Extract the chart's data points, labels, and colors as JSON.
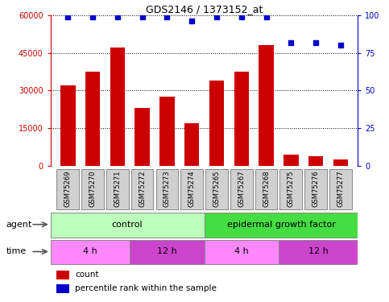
{
  "title": "GDS2146 / 1373152_at",
  "samples": [
    "GSM75269",
    "GSM75270",
    "GSM75271",
    "GSM75272",
    "GSM75273",
    "GSM75274",
    "GSM75265",
    "GSM75267",
    "GSM75268",
    "GSM75275",
    "GSM75276",
    "GSM75277"
  ],
  "counts": [
    32000,
    37500,
    47000,
    23000,
    27500,
    17000,
    34000,
    37500,
    48000,
    4500,
    4000,
    2500
  ],
  "percentile": [
    99,
    99,
    99,
    99,
    99,
    96,
    99,
    99,
    99,
    82,
    82,
    80
  ],
  "bar_color": "#cc0000",
  "dot_color": "#0000cc",
  "ylim_left": [
    0,
    60000
  ],
  "ylim_right": [
    0,
    100
  ],
  "yticks_left": [
    0,
    15000,
    30000,
    45000,
    60000
  ],
  "yticks_right": [
    0,
    25,
    50,
    75,
    100
  ],
  "control_color": "#bbffbb",
  "egf_color": "#44dd44",
  "time_4h_color": "#ff88ff",
  "time_12h_color": "#cc44cc",
  "agent_label": "agent",
  "time_label": "time",
  "legend_count": "count",
  "legend_percentile": "percentile rank within the sample",
  "control_samples": 6,
  "time_4h_control_samples": 3,
  "time_12h_control_samples": 3,
  "time_4h_egf_samples": 3,
  "time_12h_egf_samples": 3
}
